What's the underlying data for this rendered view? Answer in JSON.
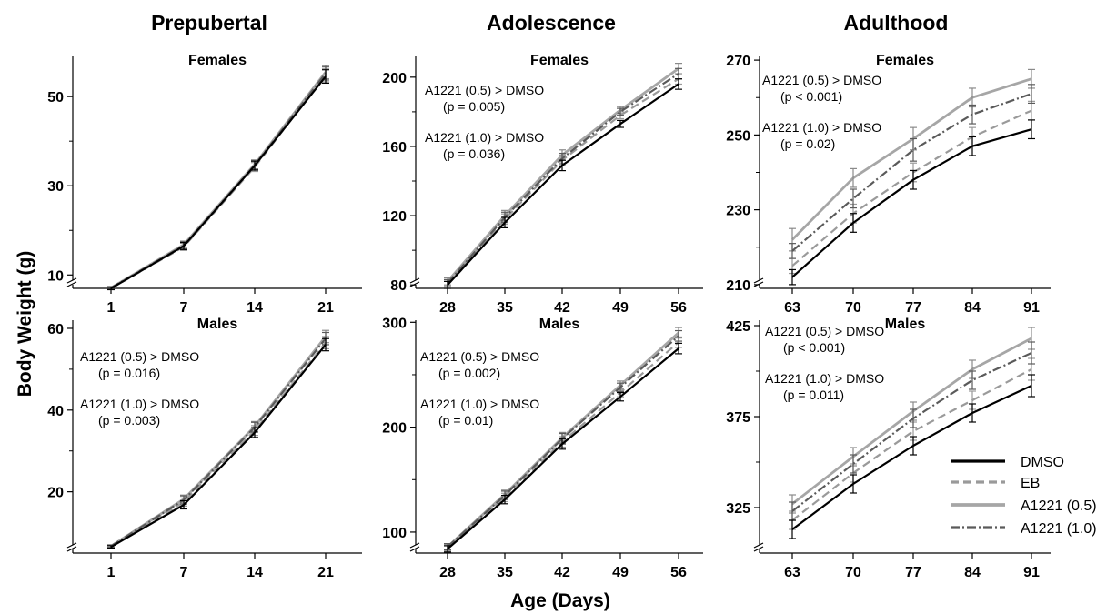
{
  "figure": {
    "column_titles": [
      "Prepubertal",
      "Adolescence",
      "Adulthood"
    ],
    "ylabel": "Body Weight (g)",
    "xlabel": "Age (Days)"
  },
  "legend": [
    {
      "name": "DMSO",
      "color": "#000000",
      "dash": "solid"
    },
    {
      "name": "EB",
      "color": "#9a9a9a",
      "dash": "dashed"
    },
    {
      "name": "A1221 (0.5)",
      "color": "#a6a6a6",
      "dash": "solid"
    },
    {
      "name": "A1221 (1.0)",
      "color": "#5a5a5a",
      "dash": "dashdot"
    }
  ],
  "chart_data": [
    {
      "type": "line",
      "title": "Females",
      "column": "Prepubertal",
      "x": [
        1,
        7,
        14,
        21
      ],
      "yticks": [
        10,
        30,
        50
      ],
      "ylim": [
        7,
        59
      ],
      "axis_break": true,
      "annotations": [],
      "series": [
        {
          "name": "DMSO",
          "values": [
            7,
            16.5,
            34.5,
            54.5
          ],
          "err": [
            0.3,
            0.8,
            1.0,
            1.5
          ]
        },
        {
          "name": "EB",
          "values": [
            7,
            16.3,
            34.2,
            54.8
          ],
          "err": [
            0.3,
            0.8,
            1.0,
            1.5
          ]
        },
        {
          "name": "A1221 (0.5)",
          "values": [
            7.1,
            16.8,
            34.8,
            55.5
          ],
          "err": [
            0.3,
            0.8,
            1.0,
            1.5
          ]
        },
        {
          "name": "A1221 (1.0)",
          "values": [
            7.1,
            16.6,
            34.6,
            55.2
          ],
          "err": [
            0.3,
            0.8,
            1.0,
            1.5
          ]
        }
      ]
    },
    {
      "type": "line",
      "title": "Females",
      "column": "Adolescence",
      "x": [
        28,
        35,
        42,
        49,
        56
      ],
      "yticks": [
        80,
        120,
        160,
        200
      ],
      "ylim": [
        78,
        212
      ],
      "axis_break": true,
      "annotations": [
        {
          "lines": [
            "A1221 (0.5) > DMSO",
            "(p = 0.005)"
          ]
        },
        {
          "lines": [
            "A1221 (1.0) > DMSO",
            "(p = 0.036)"
          ]
        }
      ],
      "series": [
        {
          "name": "DMSO",
          "values": [
            80,
            116,
            149,
            173,
            196
          ],
          "err": [
            2,
            3,
            3,
            2,
            3
          ]
        },
        {
          "name": "EB",
          "values": [
            81,
            118,
            152,
            178,
            199
          ],
          "err": [
            2,
            3,
            3,
            2,
            3
          ]
        },
        {
          "name": "A1221 (0.5)",
          "values": [
            82,
            120,
            155,
            181,
            205
          ],
          "err": [
            2,
            3,
            3,
            2,
            3
          ]
        },
        {
          "name": "A1221 (1.0)",
          "values": [
            81,
            119,
            153,
            180,
            202
          ],
          "err": [
            2,
            3,
            3,
            2,
            3
          ]
        }
      ]
    },
    {
      "type": "line",
      "title": "Females",
      "column": "Adulthood",
      "x": [
        63,
        70,
        77,
        84,
        91
      ],
      "yticks": [
        210,
        230,
        250,
        270
      ],
      "ylim": [
        209,
        271
      ],
      "axis_break": true,
      "annotations": [
        {
          "lines": [
            "A1221 (0.5) > DMSO",
            "(p < 0.001)"
          ]
        },
        {
          "lines": [
            "A1221 (1.0) > DMSO",
            "(p = 0.02)"
          ]
        }
      ],
      "series": [
        {
          "name": "DMSO",
          "values": [
            212,
            226.5,
            238,
            247,
            251.5
          ],
          "err": [
            2,
            2.5,
            2.5,
            2.5,
            2.5
          ]
        },
        {
          "name": "EB",
          "values": [
            215,
            229,
            240,
            249.5,
            256.5
          ],
          "err": [
            2,
            2.5,
            2.5,
            2.5,
            2.5
          ]
        },
        {
          "name": "A1221 (0.5)",
          "values": [
            222,
            238.5,
            249,
            260,
            265
          ],
          "err": [
            3,
            2.5,
            3,
            2.5,
            2.5
          ]
        },
        {
          "name": "A1221 (1.0)",
          "values": [
            219,
            233,
            246,
            255.5,
            261
          ],
          "err": [
            2,
            2.5,
            3,
            2.5,
            2.5
          ]
        }
      ]
    },
    {
      "type": "line",
      "title": "Males",
      "column": "Prepubertal",
      "x": [
        1,
        7,
        14,
        21
      ],
      "yticks": [
        20,
        40,
        60
      ],
      "ylim": [
        5,
        62
      ],
      "axis_break": true,
      "annotations": [
        {
          "lines": [
            "A1221 (0.5) > DMSO",
            "(p = 0.016)"
          ]
        },
        {
          "lines": [
            "A1221 (1.0) > DMSO",
            "(p = 0.003)"
          ]
        }
      ],
      "series": [
        {
          "name": "DMSO",
          "values": [
            6.5,
            16.8,
            34.5,
            56
          ],
          "err": [
            0.3,
            1.0,
            1.2,
            1.5
          ]
        },
        {
          "name": "EB",
          "values": [
            6.6,
            17.5,
            35,
            56.5
          ],
          "err": [
            0.3,
            1.0,
            1.2,
            1.5
          ]
        },
        {
          "name": "A1221 (0.5)",
          "values": [
            6.7,
            18.2,
            36,
            58
          ],
          "err": [
            0.3,
            1.0,
            1.2,
            1.5
          ]
        },
        {
          "name": "A1221 (1.0)",
          "values": [
            6.7,
            18,
            35.8,
            57.5
          ],
          "err": [
            0.3,
            1.0,
            1.2,
            1.5
          ]
        }
      ]
    },
    {
      "type": "line",
      "title": "Males",
      "column": "Adolescence",
      "x": [
        28,
        35,
        42,
        49,
        56
      ],
      "yticks": [
        100,
        200,
        300
      ],
      "ylim": [
        80,
        302
      ],
      "axis_break": true,
      "annotations": [
        {
          "lines": [
            "A1221 (0.5) > DMSO",
            "(p = 0.002)"
          ]
        },
        {
          "lines": [
            "A1221 (1.0) > DMSO",
            "(p = 0.01)"
          ]
        }
      ],
      "series": [
        {
          "name": "DMSO",
          "values": [
            84,
            131,
            184,
            229,
            275
          ],
          "err": [
            3,
            4,
            5,
            4,
            5
          ]
        },
        {
          "name": "EB",
          "values": [
            85,
            133,
            186,
            233,
            281
          ],
          "err": [
            3,
            4,
            5,
            4,
            5
          ]
        },
        {
          "name": "A1221 (0.5)",
          "values": [
            86,
            136,
            190,
            240,
            290
          ],
          "err": [
            3,
            4,
            5,
            4,
            5
          ]
        },
        {
          "name": "A1221 (1.0)",
          "values": [
            86,
            135,
            189,
            238,
            287
          ],
          "err": [
            3,
            4,
            5,
            4,
            5
          ]
        }
      ]
    },
    {
      "type": "line",
      "title": "Males",
      "column": "Adulthood",
      "x": [
        63,
        70,
        77,
        84,
        91
      ],
      "yticks": [
        325,
        375,
        425
      ],
      "ylim": [
        300,
        428
      ],
      "axis_break": true,
      "annotations": [
        {
          "lines": [
            "A1221 (0.5) > DMSO",
            "(p < 0.001)"
          ]
        },
        {
          "lines": [
            "A1221 (1.0) > DMSO",
            "(p = 0.011)"
          ]
        }
      ],
      "series": [
        {
          "name": "DMSO",
          "values": [
            313,
            338,
            359,
            377,
            392
          ],
          "err": [
            5,
            5,
            5,
            5,
            6
          ]
        },
        {
          "name": "EB",
          "values": [
            318,
            344,
            367,
            384,
            401
          ],
          "err": [
            5,
            5,
            5,
            5,
            6
          ]
        },
        {
          "name": "A1221 (0.5)",
          "values": [
            327,
            353,
            378,
            401,
            418
          ],
          "err": [
            5,
            5,
            5,
            5,
            6
          ]
        },
        {
          "name": "A1221 (1.0)",
          "values": [
            323,
            349,
            374,
            395,
            410
          ],
          "err": [
            5,
            5,
            5,
            5,
            6
          ]
        }
      ]
    }
  ]
}
